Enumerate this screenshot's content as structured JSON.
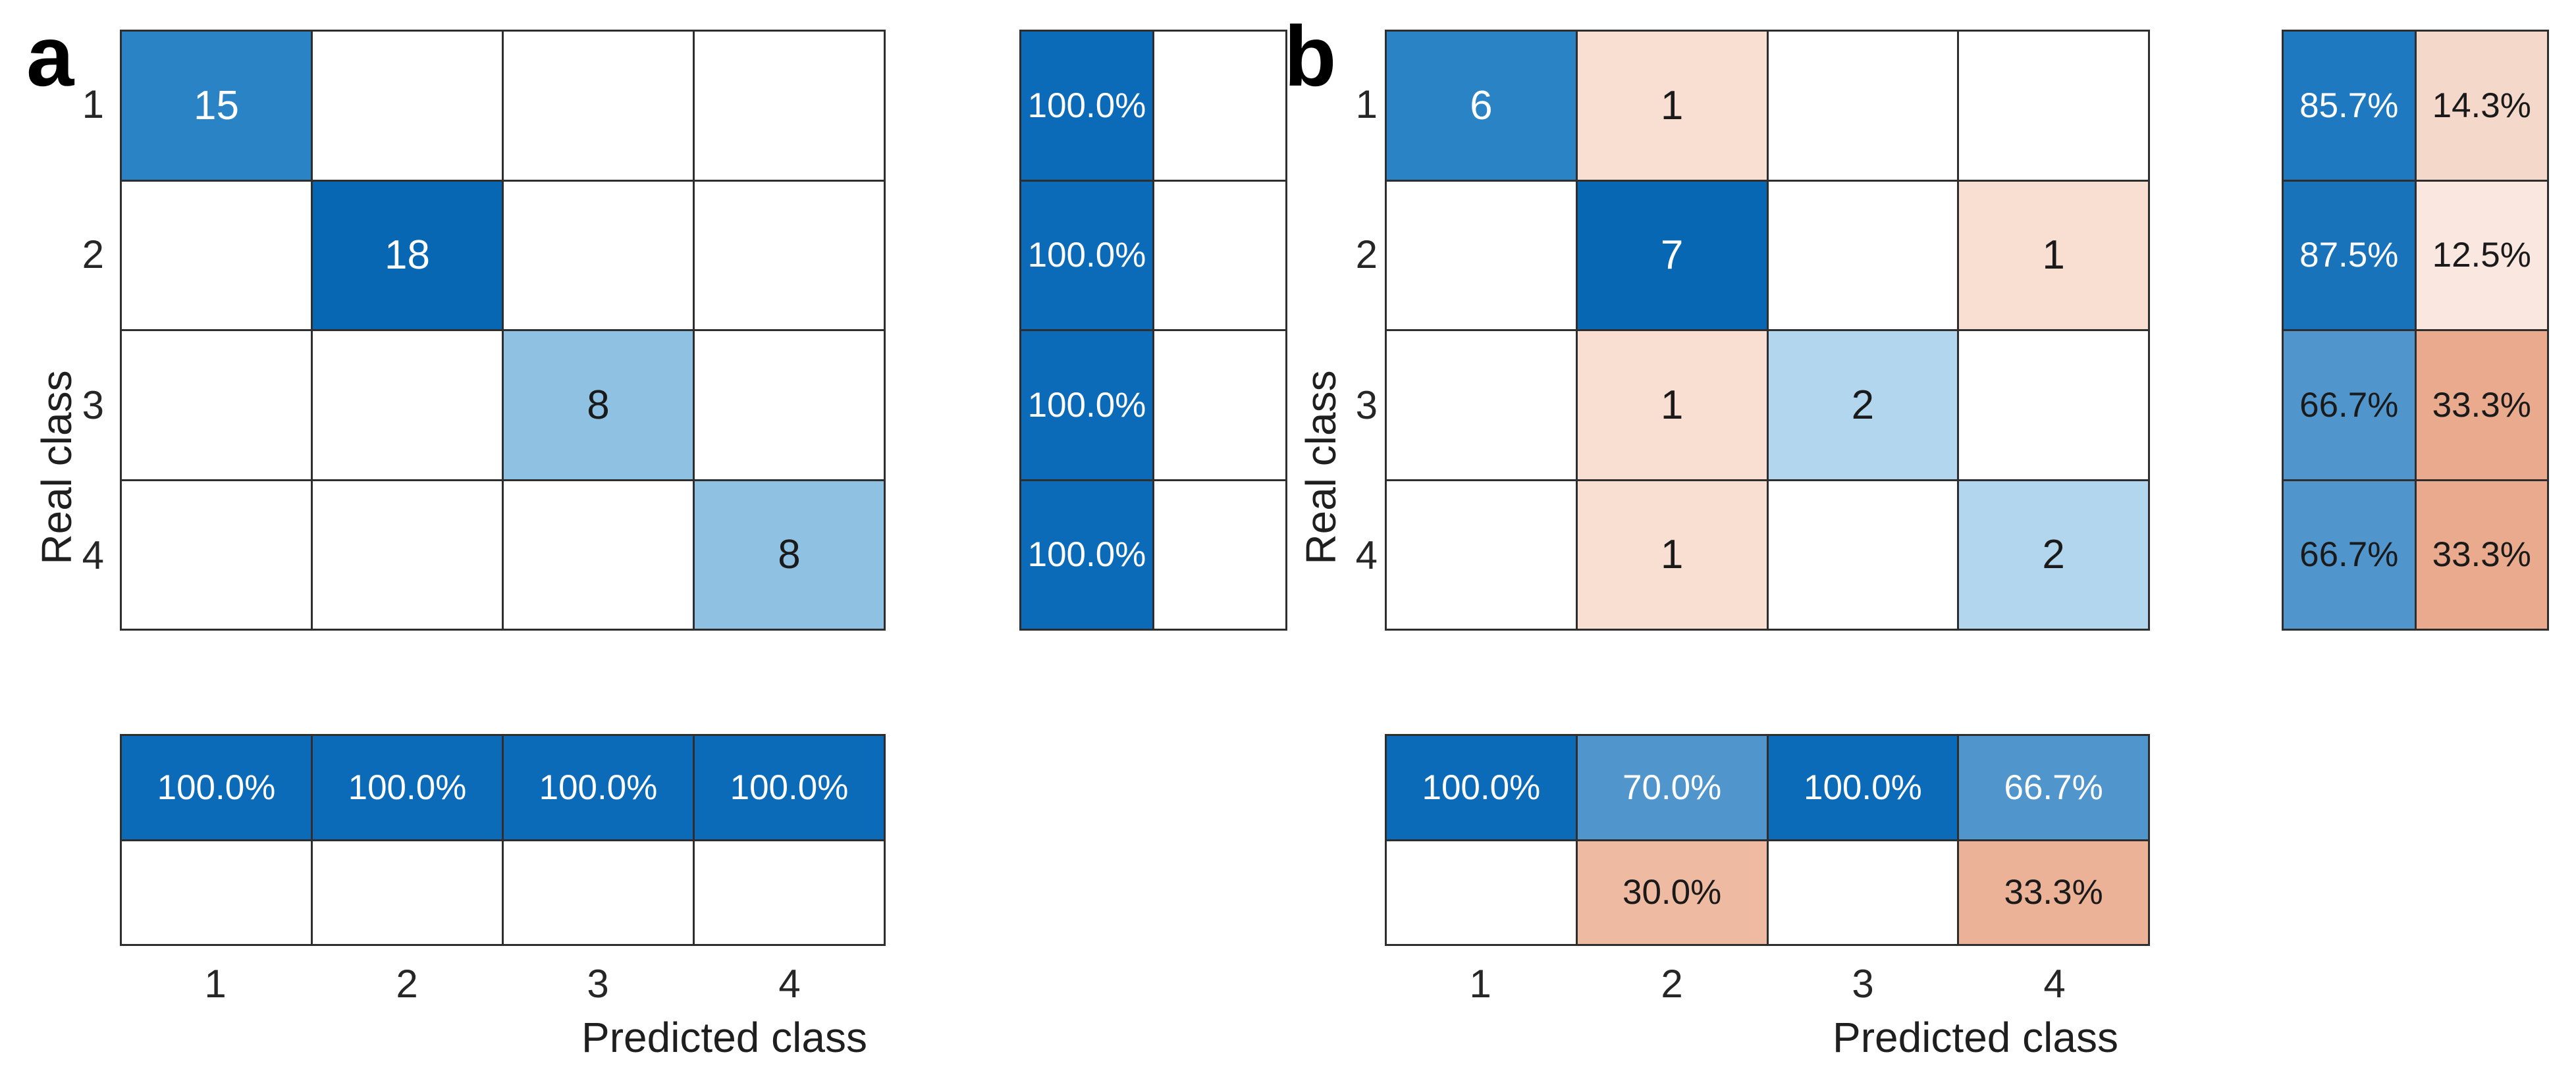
{
  "figure": {
    "background": "#ffffff",
    "grid_line_color": "#2e2e2e",
    "panels": [
      {
        "label": "a",
        "xlabel": "Predicted class",
        "ylabel": "Real class",
        "row_ticks": [
          "1",
          "2",
          "3",
          "4"
        ],
        "col_ticks": [
          "1",
          "2",
          "3",
          "4"
        ],
        "matrix_cells": [
          {
            "t": "15",
            "bg": "#2a83c4",
            "fg": "#ffffff"
          },
          {
            "t": "",
            "bg": "#ffffff"
          },
          {
            "t": "",
            "bg": "#ffffff"
          },
          {
            "t": "",
            "bg": "#ffffff"
          },
          {
            "t": "",
            "bg": "#ffffff"
          },
          {
            "t": "18",
            "bg": "#0767b2",
            "fg": "#ffffff"
          },
          {
            "t": "",
            "bg": "#ffffff"
          },
          {
            "t": "",
            "bg": "#ffffff"
          },
          {
            "t": "",
            "bg": "#ffffff"
          },
          {
            "t": "",
            "bg": "#ffffff"
          },
          {
            "t": "8",
            "bg": "#8ec1e2",
            "fg": "#1a1a1a"
          },
          {
            "t": "",
            "bg": "#ffffff"
          },
          {
            "t": "",
            "bg": "#ffffff"
          },
          {
            "t": "",
            "bg": "#ffffff"
          },
          {
            "t": "",
            "bg": "#ffffff"
          },
          {
            "t": "8",
            "bg": "#8ec1e2",
            "fg": "#1a1a1a"
          }
        ],
        "row_pct_cells": [
          {
            "t": "100.0%",
            "bg": "#0c6bb8",
            "fg": "#ffffff"
          },
          {
            "t": "",
            "bg": "#ffffff"
          },
          {
            "t": "100.0%",
            "bg": "#0c6bb8",
            "fg": "#ffffff"
          },
          {
            "t": "",
            "bg": "#ffffff"
          },
          {
            "t": "100.0%",
            "bg": "#0c6bb8",
            "fg": "#ffffff"
          },
          {
            "t": "",
            "bg": "#ffffff"
          },
          {
            "t": "100.0%",
            "bg": "#0c6bb8",
            "fg": "#ffffff"
          },
          {
            "t": "",
            "bg": "#ffffff"
          }
        ],
        "col_pct_cells": [
          {
            "t": "100.0%",
            "bg": "#0c6bb8",
            "fg": "#ffffff"
          },
          {
            "t": "100.0%",
            "bg": "#0c6bb8",
            "fg": "#ffffff"
          },
          {
            "t": "100.0%",
            "bg": "#0c6bb8",
            "fg": "#ffffff"
          },
          {
            "t": "100.0%",
            "bg": "#0c6bb8",
            "fg": "#ffffff"
          },
          {
            "t": "",
            "bg": "#ffffff"
          },
          {
            "t": "",
            "bg": "#ffffff"
          },
          {
            "t": "",
            "bg": "#ffffff"
          },
          {
            "t": "",
            "bg": "#ffffff"
          }
        ]
      },
      {
        "label": "b",
        "xlabel": "Predicted class",
        "ylabel": "Real class",
        "row_ticks": [
          "1",
          "2",
          "3",
          "4"
        ],
        "col_ticks": [
          "1",
          "2",
          "3",
          "4"
        ],
        "matrix_cells": [
          {
            "t": "6",
            "bg": "#2a83c4",
            "fg": "#ffffff"
          },
          {
            "t": "1",
            "bg": "#f8dfd2",
            "fg": "#1a1a1a"
          },
          {
            "t": "",
            "bg": "#ffffff"
          },
          {
            "t": "",
            "bg": "#ffffff"
          },
          {
            "t": "",
            "bg": "#ffffff"
          },
          {
            "t": "7",
            "bg": "#0767b2",
            "fg": "#ffffff"
          },
          {
            "t": "",
            "bg": "#ffffff"
          },
          {
            "t": "1",
            "bg": "#f8dfd2",
            "fg": "#1a1a1a"
          },
          {
            "t": "",
            "bg": "#ffffff"
          },
          {
            "t": "1",
            "bg": "#f8dfd2",
            "fg": "#1a1a1a"
          },
          {
            "t": "2",
            "bg": "#b1d6ee",
            "fg": "#1a1a1a"
          },
          {
            "t": "",
            "bg": "#ffffff"
          },
          {
            "t": "",
            "bg": "#ffffff"
          },
          {
            "t": "1",
            "bg": "#f8dfd2",
            "fg": "#1a1a1a"
          },
          {
            "t": "",
            "bg": "#ffffff"
          },
          {
            "t": "2",
            "bg": "#b1d6ee",
            "fg": "#1a1a1a"
          }
        ],
        "row_pct_cells": [
          {
            "t": "85.7%",
            "bg": "#1e79c0",
            "fg": "#ffffff"
          },
          {
            "t": "14.3%",
            "bg": "#f4d9cb",
            "fg": "#1a1a1a"
          },
          {
            "t": "87.5%",
            "bg": "#1973bb",
            "fg": "#ffffff"
          },
          {
            "t": "12.5%",
            "bg": "#fae8e0",
            "fg": "#1a1a1a"
          },
          {
            "t": "66.7%",
            "bg": "#5096cd",
            "fg": "#1a1a1a"
          },
          {
            "t": "33.3%",
            "bg": "#e9aa8e",
            "fg": "#1a1a1a"
          },
          {
            "t": "66.7%",
            "bg": "#5096cd",
            "fg": "#1a1a1a"
          },
          {
            "t": "33.3%",
            "bg": "#e9aa8e",
            "fg": "#1a1a1a"
          }
        ],
        "col_pct_cells": [
          {
            "t": "100.0%",
            "bg": "#0c6bb8",
            "fg": "#ffffff"
          },
          {
            "t": "70.0%",
            "bg": "#5096cd",
            "fg": "#ffffff"
          },
          {
            "t": "100.0%",
            "bg": "#0c6bb8",
            "fg": "#ffffff"
          },
          {
            "t": "66.7%",
            "bg": "#5096cd",
            "fg": "#ffffff"
          },
          {
            "t": "",
            "bg": "#ffffff"
          },
          {
            "t": "30.0%",
            "bg": "#eebaa1",
            "fg": "#1a1a1a"
          },
          {
            "t": "",
            "bg": "#ffffff"
          },
          {
            "t": "33.3%",
            "bg": "#ecb298",
            "fg": "#1a1a1a"
          }
        ]
      }
    ]
  },
  "colors": {
    "diag_max_blue": "#0767b2",
    "diag_high_blue": "#2a83c4",
    "diag_mid_blue": "#8ec1e2",
    "diag_low_blue": "#b1d6ee",
    "pct_100_blue": "#0c6bb8",
    "pct_mid_blue": "#5096cd",
    "error_light_pink": "#f8dfd2",
    "error_salmon": "#e9aa8e",
    "grid_line": "#2e2e2e",
    "text_dark": "#1a1a1a",
    "text_white": "#ffffff"
  },
  "chart_data": [
    {
      "type": "heatmap",
      "title": "a",
      "xlabel": "Predicted class",
      "ylabel": "Real class",
      "x_ticks": [
        "1",
        "2",
        "3",
        "4"
      ],
      "y_ticks": [
        "1",
        "2",
        "3",
        "4"
      ],
      "matrix": [
        [
          15,
          null,
          null,
          null
        ],
        [
          null,
          18,
          null,
          null
        ],
        [
          null,
          null,
          8,
          null
        ],
        [
          null,
          null,
          null,
          8
        ]
      ],
      "row_percentages_correct": [
        "100.0%",
        "100.0%",
        "100.0%",
        "100.0%"
      ],
      "row_percentages_wrong": [
        "",
        "",
        "",
        ""
      ],
      "col_percentages_correct": [
        "100.0%",
        "100.0%",
        "100.0%",
        "100.0%"
      ],
      "col_percentages_wrong": [
        "",
        "",
        "",
        ""
      ],
      "grid": true,
      "legend": false
    },
    {
      "type": "heatmap",
      "title": "b",
      "xlabel": "Predicted class",
      "ylabel": "Real class",
      "x_ticks": [
        "1",
        "2",
        "3",
        "4"
      ],
      "y_ticks": [
        "1",
        "2",
        "3",
        "4"
      ],
      "matrix": [
        [
          6,
          1,
          null,
          null
        ],
        [
          null,
          7,
          null,
          1
        ],
        [
          null,
          1,
          2,
          null
        ],
        [
          null,
          1,
          null,
          2
        ]
      ],
      "row_percentages_correct": [
        "85.7%",
        "87.5%",
        "66.7%",
        "66.7%"
      ],
      "row_percentages_wrong": [
        "14.3%",
        "12.5%",
        "33.3%",
        "33.3%"
      ],
      "col_percentages_correct": [
        "100.0%",
        "70.0%",
        "100.0%",
        "66.7%"
      ],
      "col_percentages_wrong": [
        "",
        "30.0%",
        "",
        "33.3%"
      ],
      "grid": true,
      "legend": false
    }
  ]
}
